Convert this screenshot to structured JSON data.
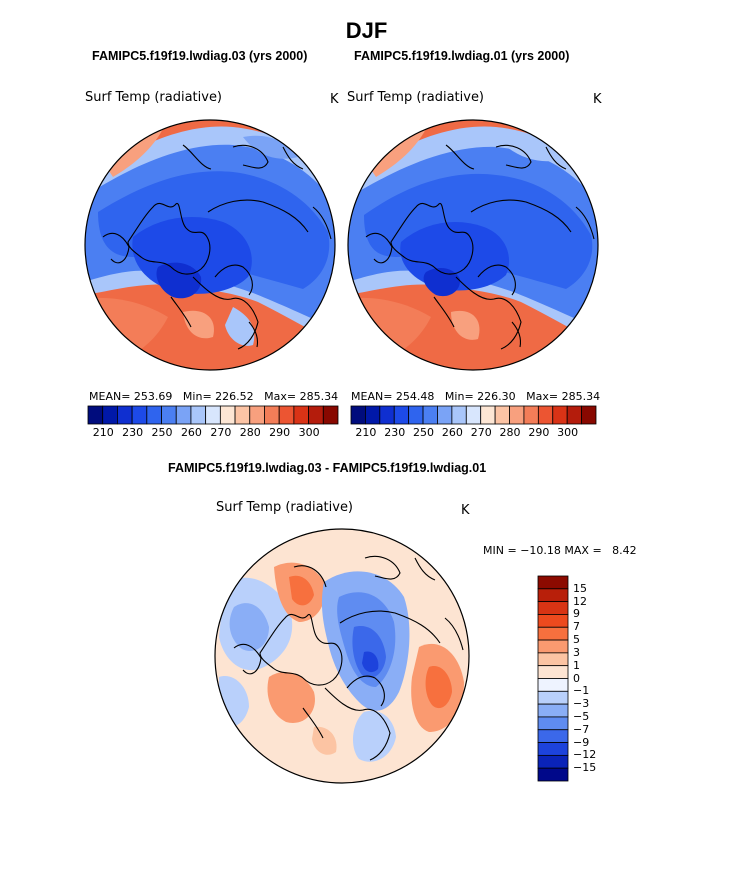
{
  "title": "DJF",
  "chart_data": [
    {
      "type": "heatmap",
      "projection": "north polar stereographic",
      "case_label": "FAMIPC5.f19f19.lwdiag.03 (yrs 2000)",
      "variable": "Surf Temp (radiative)",
      "units": "K",
      "stats": {
        "mean_label": "MEAN=",
        "mean": "253.69",
        "min_label": "Min=",
        "min": "226.52",
        "max_label": "Max=",
        "max": "285.34"
      },
      "colorbar": {
        "ticks": [
          "210",
          "230",
          "250",
          "260",
          "270",
          "280",
          "290",
          "300"
        ],
        "colors": [
          "#000c7d",
          "#0018a8",
          "#0f2fd0",
          "#1d4ae8",
          "#2f64ee",
          "#4b7ff2",
          "#7aa3f6",
          "#a9c6fa",
          "#d8e6fd",
          "#fde6d4",
          "#fcc4a5",
          "#f8a07e",
          "#f37d58",
          "#ec5532",
          "#d93316",
          "#b41c0c",
          "#880800"
        ]
      }
    },
    {
      "type": "heatmap",
      "projection": "north polar stereographic",
      "case_label": "FAMIPC5.f19f19.lwdiag.01 (yrs 2000)",
      "variable": "Surf Temp (radiative)",
      "units": "K",
      "stats": {
        "mean_label": "MEAN=",
        "mean": "254.48",
        "min_label": "Min=",
        "min": "226.30",
        "max_label": "Max=",
        "max": "285.34"
      },
      "colorbar": {
        "ticks": [
          "210",
          "230",
          "250",
          "260",
          "270",
          "280",
          "290",
          "300"
        ],
        "colors": [
          "#000c7d",
          "#0018a8",
          "#0f2fd0",
          "#1d4ae8",
          "#2f64ee",
          "#4b7ff2",
          "#7aa3f6",
          "#a9c6fa",
          "#d8e6fd",
          "#fde6d4",
          "#fcc4a5",
          "#f8a07e",
          "#f37d58",
          "#ec5532",
          "#d93316",
          "#b41c0c",
          "#880800"
        ]
      }
    },
    {
      "type": "heatmap",
      "projection": "north polar stereographic",
      "case_label": "FAMIPC5.f19f19.lwdiag.03 - FAMIPC5.f19f19.lwdiag.01",
      "variable": "Surf Temp (radiative)",
      "units": "K",
      "range_text": {
        "min_label": "MIN =",
        "min": "−10.18",
        "max_label": "MAX =",
        "max": "8.42"
      },
      "colorbar": {
        "ticks": [
          "15",
          "12",
          "9",
          "7",
          "5",
          "3",
          "1",
          "0",
          "−1",
          "−3",
          "−5",
          "−7",
          "−9",
          "−12",
          "−15"
        ],
        "colors": [
          "#8c0a00",
          "#b81f0a",
          "#d83414",
          "#ed4a1e",
          "#f7703e",
          "#fa9a70",
          "#fcc4a3",
          "#fde4d2",
          "#eef3ff",
          "#b9d0fb",
          "#8aaef6",
          "#5f8cf1",
          "#3b68ea",
          "#1d43dc",
          "#0a23b8",
          "#00088a"
        ]
      }
    }
  ]
}
